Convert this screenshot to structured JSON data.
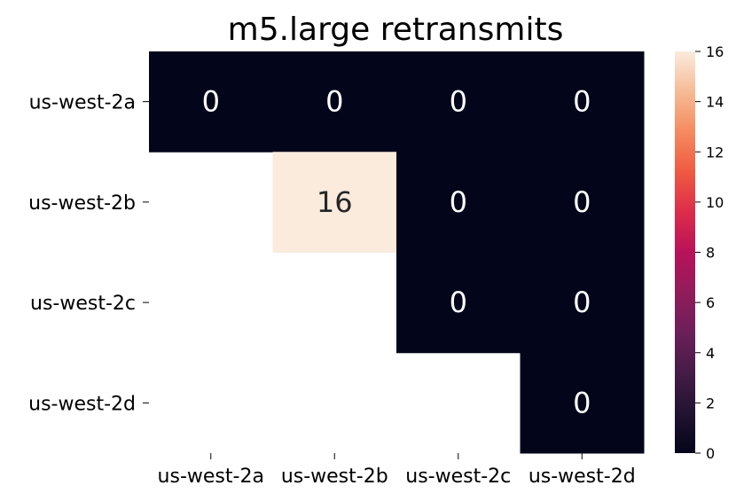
{
  "chart_data": {
    "type": "heatmap",
    "title": "m5.large retransmits",
    "rows": [
      "us-west-2a",
      "us-west-2b",
      "us-west-2c",
      "us-west-2d"
    ],
    "columns": [
      "us-west-2a",
      "us-west-2b",
      "us-west-2c",
      "us-west-2d"
    ],
    "values": [
      [
        0,
        0,
        0,
        0
      ],
      [
        null,
        16,
        0,
        0
      ],
      [
        null,
        null,
        0,
        0
      ],
      [
        null,
        null,
        null,
        0
      ]
    ],
    "annotations": true,
    "mask": "lower-triangle",
    "colormap": "rocket",
    "colorbar": {
      "min": 0,
      "max": 16,
      "ticks": [
        0,
        2,
        4,
        6,
        8,
        10,
        12,
        14,
        16
      ]
    },
    "colors": {
      "low": "#03051a",
      "high": "#faebdd"
    }
  }
}
